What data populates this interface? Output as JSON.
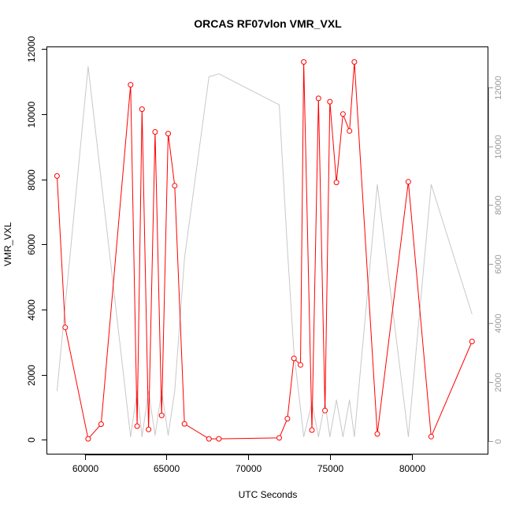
{
  "chart_data": {
    "type": "line",
    "title": "ORCAS RF07vlon VMR_VXL",
    "xlabel": "UTC Seconds",
    "ylabel": "VMR_VXL",
    "xlim": [
      57700,
      84700
    ],
    "ylim": [
      -450,
      12050
    ],
    "y2lim": [
      -450,
      13350
    ],
    "x_ticks": [
      60000,
      65000,
      70000,
      75000,
      80000
    ],
    "x_tick_labels": [
      "60000",
      "65000",
      "70000",
      "75000",
      "80000"
    ],
    "y_ticks": [
      0,
      2000,
      4000,
      6000,
      8000,
      10000,
      12000
    ],
    "y_tick_labels": [
      "0",
      "2000",
      "4000",
      "6000",
      "8000",
      "10000",
      "12000"
    ],
    "y2_ticks": [
      0,
      2000,
      4000,
      6000,
      8000,
      10000,
      12000
    ],
    "y2_tick_labels": [
      "0",
      "2000",
      "4000",
      "6000",
      "8000",
      "10000",
      "12000"
    ],
    "grid": false,
    "legend": "none",
    "series": [
      {
        "axis": "left",
        "style": "line+points",
        "color": "#ff0000",
        "x": [
          58300,
          58800,
          60200,
          61000,
          62800,
          63200,
          63500,
          63900,
          64300,
          64700,
          65100,
          65500,
          66100,
          67600,
          68200,
          71900,
          72400,
          72800,
          73200,
          73400,
          73900,
          74300,
          74700,
          75000,
          75400,
          75800,
          76200,
          76500,
          77900,
          79800,
          81200,
          83700
        ],
        "values": [
          8100,
          3450,
          30,
          480,
          10900,
          420,
          10150,
          320,
          9450,
          750,
          9400,
          7800,
          490,
          30,
          30,
          60,
          650,
          2500,
          2300,
          11600,
          300,
          10480,
          900,
          10380,
          7900,
          10000,
          9480,
          11600,
          180,
          7920,
          100,
          3020
        ]
      },
      {
        "axis": "right",
        "style": "line",
        "color": "#c8c8c8",
        "x": [
          58300,
          60200,
          62800,
          63200,
          63500,
          63900,
          64300,
          64700,
          65100,
          65500,
          66100,
          67600,
          68200,
          71900,
          72400,
          72800,
          73200,
          73400,
          73900,
          74300,
          74700,
          75000,
          75400,
          75800,
          76200,
          76500,
          77900,
          79800,
          81200,
          83700
        ],
        "values": [
          1700,
          12700,
          150,
          1700,
          150,
          1700,
          200,
          1700,
          200,
          1700,
          6200,
          12350,
          12450,
          11400,
          6500,
          3000,
          1100,
          150,
          1300,
          150,
          1300,
          150,
          1400,
          150,
          1400,
          150,
          8700,
          150,
          8700,
          4300
        ]
      }
    ]
  }
}
